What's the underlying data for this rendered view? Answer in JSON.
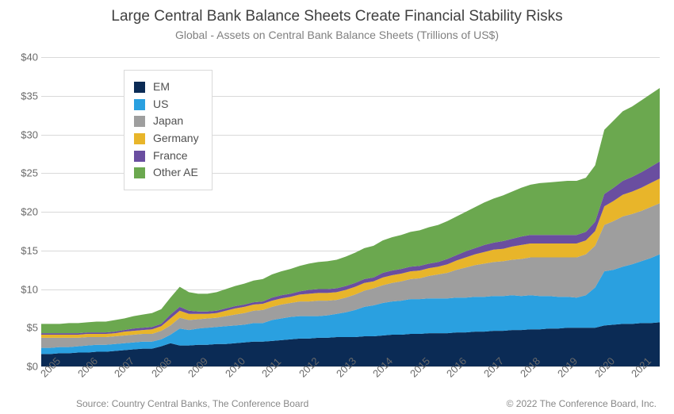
{
  "title": "Large Central Bank Balance Sheets Create Financial Stability Risks",
  "subtitle": "Global - Assets on Central Bank Balance Sheets (Trillions of US$)",
  "source": "Source: Country Central Banks, The Conference Board",
  "copyright": "© 2022 The Conference Board, Inc.",
  "chart": {
    "type": "stacked-area",
    "background_color": "#ffffff",
    "grid_color": "#d9d9d9",
    "axis_font_size": 13,
    "title_font_size": 19,
    "subtitle_font_size": 14,
    "ylim": [
      0,
      40
    ],
    "ytick_step": 5,
    "ytick_prefix": "$",
    "x_labels": [
      "2005",
      "2006",
      "2007",
      "2008",
      "2009",
      "2010",
      "2011",
      "2012",
      "2013",
      "2014",
      "2015",
      "2016",
      "2017",
      "2018",
      "2019",
      "2020",
      "2021"
    ],
    "x_label_rotation_deg": -45,
    "x_points_per_label": 4,
    "legend": {
      "position": "inside-top-left",
      "border_color": "#d9d9d9",
      "items": [
        {
          "label": "EM",
          "color": "#0b2b55"
        },
        {
          "label": "US",
          "color": "#2aa0e0"
        },
        {
          "label": "Japan",
          "color": "#9e9e9e"
        },
        {
          "label": "Germany",
          "color": "#e8b52a"
        },
        {
          "label": "France",
          "color": "#6a4ea0"
        },
        {
          "label": "Other AE",
          "color": "#6ba84f"
        }
      ]
    },
    "series": [
      {
        "name": "EM",
        "color": "#0b2b55",
        "values": [
          1.6,
          1.6,
          1.7,
          1.7,
          1.8,
          1.8,
          1.9,
          1.9,
          2.0,
          2.1,
          2.2,
          2.3,
          2.3,
          2.6,
          3.0,
          2.7,
          2.7,
          2.8,
          2.8,
          2.9,
          2.9,
          3.0,
          3.1,
          3.2,
          3.2,
          3.3,
          3.4,
          3.5,
          3.6,
          3.6,
          3.7,
          3.7,
          3.8,
          3.8,
          3.8,
          3.9,
          3.9,
          4.0,
          4.1,
          4.1,
          4.2,
          4.2,
          4.3,
          4.3,
          4.3,
          4.4,
          4.4,
          4.5,
          4.5,
          4.6,
          4.6,
          4.7,
          4.7,
          4.8,
          4.8,
          4.9,
          4.9,
          5.0,
          5.0,
          5.0,
          5.0,
          5.3,
          5.4,
          5.5,
          5.5,
          5.6,
          5.6,
          5.7
        ]
      },
      {
        "name": "US",
        "color": "#2aa0e0",
        "values": [
          0.8,
          0.8,
          0.8,
          0.8,
          0.8,
          0.9,
          0.9,
          0.9,
          0.9,
          0.9,
          0.9,
          0.9,
          0.9,
          0.9,
          1.1,
          2.2,
          2.0,
          2.1,
          2.2,
          2.2,
          2.3,
          2.3,
          2.3,
          2.4,
          2.4,
          2.7,
          2.8,
          2.9,
          2.9,
          2.9,
          2.8,
          2.9,
          3.0,
          3.2,
          3.5,
          3.8,
          4.0,
          4.2,
          4.3,
          4.4,
          4.5,
          4.5,
          4.5,
          4.5,
          4.5,
          4.5,
          4.5,
          4.5,
          4.5,
          4.5,
          4.5,
          4.5,
          4.4,
          4.4,
          4.3,
          4.2,
          4.1,
          4.0,
          3.9,
          4.2,
          5.2,
          7.0,
          7.1,
          7.4,
          7.7,
          8.0,
          8.4,
          8.8
        ]
      },
      {
        "name": "Japan",
        "color": "#9e9e9e",
        "values": [
          1.3,
          1.3,
          1.2,
          1.2,
          1.1,
          1.1,
          1.0,
          1.0,
          1.0,
          1.0,
          1.0,
          1.0,
          1.0,
          1.1,
          1.2,
          1.4,
          1.3,
          1.2,
          1.2,
          1.2,
          1.3,
          1.4,
          1.5,
          1.6,
          1.7,
          1.7,
          1.8,
          1.8,
          1.9,
          1.9,
          2.0,
          1.9,
          1.8,
          1.9,
          2.0,
          2.1,
          2.2,
          2.3,
          2.4,
          2.5,
          2.6,
          2.7,
          2.9,
          3.1,
          3.3,
          3.6,
          3.9,
          4.1,
          4.3,
          4.4,
          4.5,
          4.6,
          4.8,
          4.9,
          5.0,
          5.0,
          5.1,
          5.1,
          5.2,
          5.3,
          5.4,
          6.0,
          6.3,
          6.5,
          6.5,
          6.5,
          6.6,
          6.6
        ]
      },
      {
        "name": "Germany",
        "color": "#e8b52a",
        "values": [
          0.4,
          0.4,
          0.4,
          0.4,
          0.4,
          0.4,
          0.4,
          0.4,
          0.4,
          0.5,
          0.5,
          0.5,
          0.6,
          0.6,
          0.9,
          0.9,
          0.8,
          0.7,
          0.6,
          0.6,
          0.7,
          0.8,
          0.8,
          0.8,
          0.8,
          0.8,
          0.8,
          0.8,
          0.9,
          1.0,
          1.0,
          1.0,
          1.0,
          1.0,
          1.0,
          1.0,
          0.9,
          1.0,
          1.0,
          1.0,
          1.0,
          1.0,
          1.0,
          1.0,
          1.1,
          1.2,
          1.3,
          1.4,
          1.5,
          1.6,
          1.6,
          1.7,
          1.8,
          1.8,
          1.8,
          1.8,
          1.8,
          1.8,
          1.8,
          1.8,
          1.9,
          2.4,
          2.6,
          2.8,
          2.9,
          3.0,
          3.1,
          3.2
        ]
      },
      {
        "name": "France",
        "color": "#6a4ea0",
        "values": [
          0.2,
          0.2,
          0.2,
          0.2,
          0.2,
          0.2,
          0.2,
          0.2,
          0.2,
          0.2,
          0.3,
          0.3,
          0.3,
          0.3,
          0.5,
          0.5,
          0.4,
          0.3,
          0.3,
          0.3,
          0.3,
          0.3,
          0.3,
          0.3,
          0.3,
          0.4,
          0.4,
          0.4,
          0.4,
          0.5,
          0.5,
          0.5,
          0.5,
          0.5,
          0.5,
          0.5,
          0.5,
          0.6,
          0.6,
          0.6,
          0.6,
          0.6,
          0.6,
          0.6,
          0.7,
          0.7,
          0.8,
          0.8,
          0.9,
          0.9,
          1.0,
          1.0,
          1.1,
          1.1,
          1.1,
          1.1,
          1.1,
          1.1,
          1.1,
          1.1,
          1.2,
          1.6,
          1.7,
          1.8,
          1.9,
          2.0,
          2.1,
          2.2
        ]
      },
      {
        "name": "Other AE",
        "color": "#6ba84f",
        "values": [
          1.2,
          1.2,
          1.2,
          1.3,
          1.3,
          1.3,
          1.4,
          1.4,
          1.5,
          1.5,
          1.6,
          1.7,
          1.8,
          1.9,
          2.2,
          2.6,
          2.4,
          2.3,
          2.3,
          2.4,
          2.5,
          2.6,
          2.7,
          2.8,
          2.9,
          3.0,
          3.1,
          3.2,
          3.3,
          3.4,
          3.5,
          3.6,
          3.7,
          3.8,
          3.9,
          4.0,
          4.1,
          4.2,
          4.3,
          4.4,
          4.5,
          4.6,
          4.7,
          4.8,
          4.9,
          5.0,
          5.1,
          5.3,
          5.5,
          5.7,
          5.9,
          6.1,
          6.3,
          6.5,
          6.7,
          6.8,
          6.9,
          7.0,
          7.0,
          7.0,
          7.3,
          8.3,
          8.7,
          9.0,
          9.1,
          9.3,
          9.4,
          9.5
        ]
      }
    ]
  }
}
